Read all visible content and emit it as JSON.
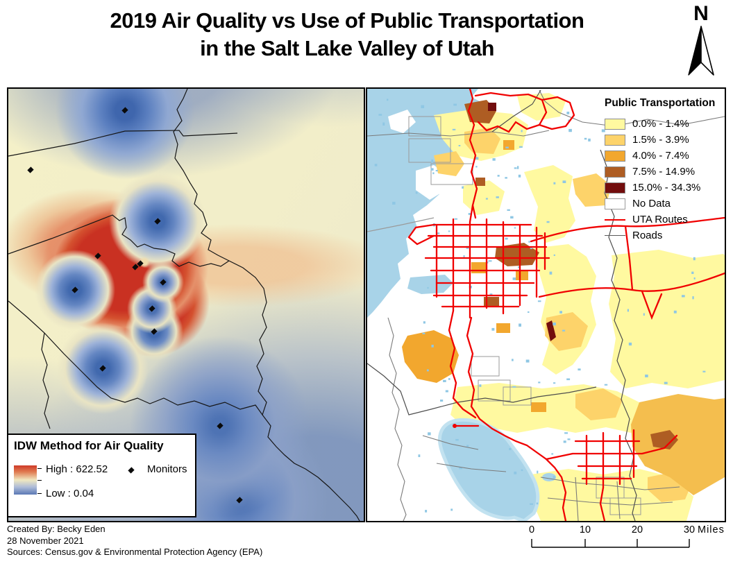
{
  "page": {
    "title_line1": "2019 Air Quality vs Use of Public Transportation",
    "title_line2": "in the Salt Lake Valley of Utah",
    "north_label": "N"
  },
  "left_map": {
    "legend": {
      "title": "IDW Method for Air Quality",
      "high_label": "High : 622.52",
      "low_label": "Low : 0.04",
      "monitors_label": "Monitors"
    },
    "idw_colors": {
      "high": "#C93122",
      "mid": "#F0E8C0",
      "low": "#5B79B5"
    },
    "monitors": [
      [
        168,
        31
      ],
      [
        32,
        117
      ],
      [
        129,
        241
      ],
      [
        183,
        257
      ],
      [
        190,
        252
      ],
      [
        215,
        191
      ],
      [
        96,
        290
      ],
      [
        223,
        279
      ],
      [
        207,
        317
      ],
      [
        210,
        350
      ],
      [
        136,
        403
      ],
      [
        305,
        486
      ],
      [
        333,
        593
      ]
    ]
  },
  "right_map": {
    "legend": {
      "title": "Public Transportation",
      "classes": [
        {
          "label": "0.0% - 1.4%",
          "color": "#FFF9A0"
        },
        {
          "label": "1.5% - 3.9%",
          "color": "#FDD36A"
        },
        {
          "label": "4.0% - 7.4%",
          "color": "#F2A72E"
        },
        {
          "label": "7.5% - 14.9%",
          "color": "#AE5D23"
        },
        {
          "label": "15.0% - 34.3%",
          "color": "#720D0D"
        }
      ],
      "no_data_label": "No Data",
      "uta_routes_label": "UTA Routes",
      "roads_label": "Roads",
      "uta_color": "#F00000",
      "road_color": "#5A5A5A",
      "water_color": "#A8D3E8"
    }
  },
  "scale_bar": {
    "tick_labels": [
      "0",
      "10",
      "20",
      "30"
    ],
    "unit": "Miles"
  },
  "credits": {
    "line1": "Created By: Becky Eden",
    "line2": "28 November 2021",
    "line3": "Sources: Census.gov & Environmental Protection Agency (EPA)"
  }
}
